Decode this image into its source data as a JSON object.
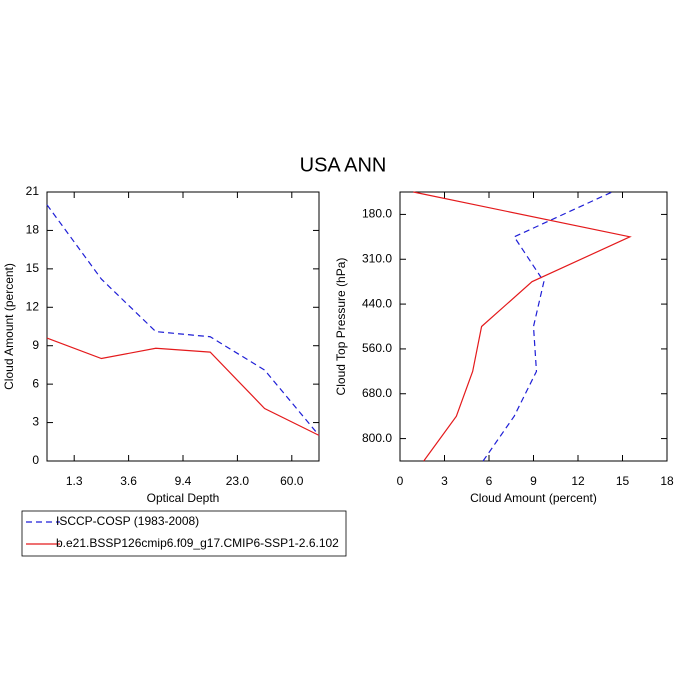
{
  "title": "USA ANN",
  "chart_data": [
    {
      "type": "line",
      "xlabel": "Optical Depth",
      "ylabel": "Cloud Amount (percent)",
      "x": [
        0,
        1,
        2,
        3,
        4,
        5
      ],
      "xlim": [
        0,
        5
      ],
      "xticks": [
        {
          "value": 0.5,
          "label": "1.3"
        },
        {
          "value": 1.5,
          "label": "3.6"
        },
        {
          "value": 2.5,
          "label": "9.4"
        },
        {
          "value": 3.5,
          "label": "23.0"
        },
        {
          "value": 4.5,
          "label": "60.0"
        }
      ],
      "ylim": [
        0,
        21
      ],
      "yticks": [
        0,
        3,
        6,
        9,
        12,
        15,
        18,
        21
      ],
      "series": [
        {
          "name": "ISCCP-COSP (1983-2008)",
          "color": "#1f1fd6",
          "line_style": "dashed",
          "values": [
            20.0,
            14.2,
            10.1,
            9.7,
            7.1,
            2.0
          ]
        },
        {
          "name": "b.e21.BSSP126cmip6.f09_g17.CMIP6-SSP1-2.6.102",
          "color": "#e41a1c",
          "line_style": "solid",
          "values": [
            9.6,
            8.0,
            8.8,
            8.5,
            4.1,
            2.0
          ]
        }
      ]
    },
    {
      "type": "line",
      "orientation": "horizontal",
      "xlabel": "Cloud Amount (percent)",
      "ylabel": "Cloud Top Pressure (hPa)",
      "xlim": [
        0,
        18
      ],
      "xticks": [
        0,
        3,
        6,
        9,
        12,
        15,
        18
      ],
      "y": [
        0,
        1,
        2,
        3,
        4,
        5,
        6
      ],
      "ylim": [
        0,
        6
      ],
      "yticks": [
        {
          "value": 0.5,
          "label": "800.0"
        },
        {
          "value": 1.5,
          "label": "680.0"
        },
        {
          "value": 2.5,
          "label": "560.0"
        },
        {
          "value": 3.5,
          "label": "440.0"
        },
        {
          "value": 4.5,
          "label": "310.0"
        },
        {
          "value": 5.5,
          "label": "180.0"
        }
      ],
      "series": [
        {
          "color": "#1f1fd6",
          "line_style": "dashed",
          "values": [
            5.6,
            7.7,
            9.2,
            9.0,
            9.7,
            7.7,
            14.3
          ]
        },
        {
          "color": "#e41a1c",
          "line_style": "solid",
          "values": [
            1.6,
            3.8,
            4.9,
            5.5,
            8.9,
            15.5,
            0.9
          ]
        }
      ]
    }
  ]
}
